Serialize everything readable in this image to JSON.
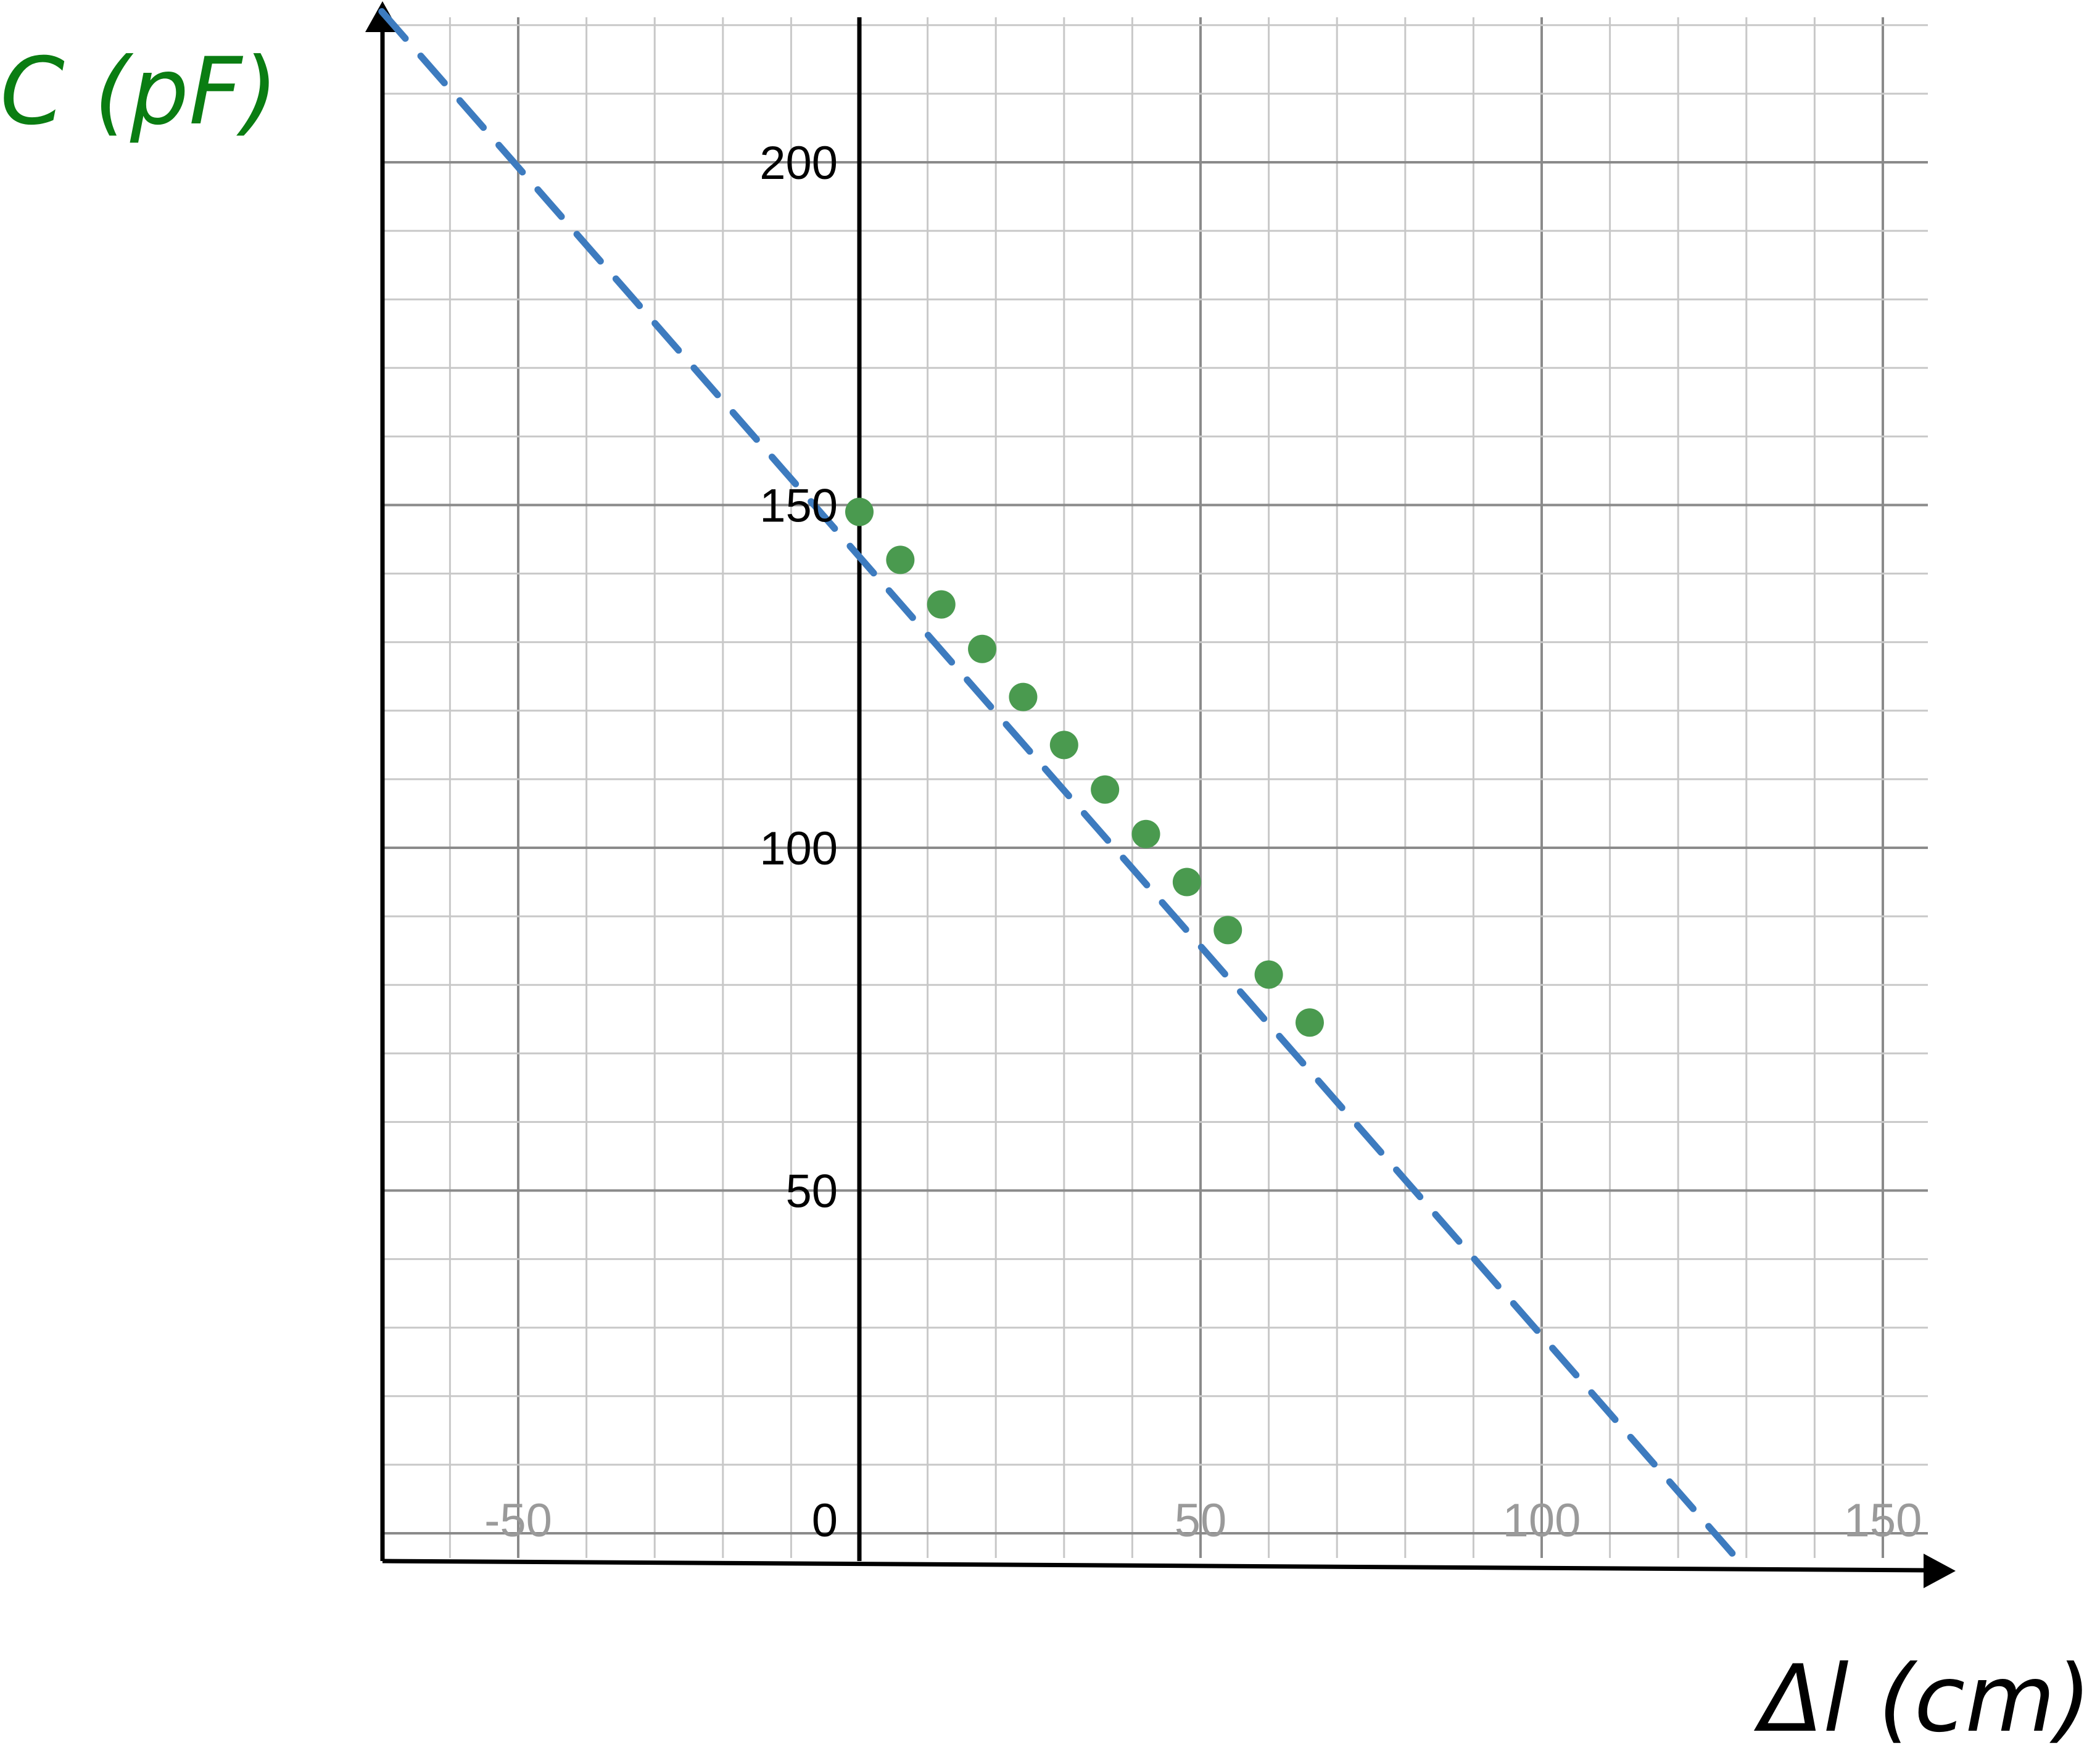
{
  "chart_data": {
    "type": "scatter",
    "xlabel": "Δl (cm)",
    "ylabel": "C (pF)",
    "xlim": [
      -70,
      157
    ],
    "ylim": [
      -4,
      228
    ],
    "x_ticks": [
      -50,
      50,
      100,
      150
    ],
    "y_ticks": [
      0,
      50,
      100,
      150,
      200
    ],
    "x_tick_labels": [
      "-50",
      "50",
      "100",
      "150"
    ],
    "y_tick_labels": [
      "0",
      "50",
      "100",
      "150",
      "200"
    ],
    "grid": true,
    "legend": "none",
    "series": [
      {
        "x": [
          0,
          6,
          12,
          18,
          24,
          30,
          36,
          42,
          48,
          54,
          60,
          66
        ],
        "y": [
          149,
          142,
          135.5,
          129,
          122,
          115,
          108.5,
          102,
          95,
          88,
          81.5,
          74.5
        ]
      }
    ],
    "fit_line": {
      "x": [
        -70,
        128
      ],
      "y": [
        222,
        -3
      ]
    },
    "colors": {
      "points": "#4a9a4f",
      "fit_line": "#3d7bbf",
      "axis_labels": "#0a7d12",
      "grid_major": "#8a8a8a",
      "grid_minor": "#c8c8c8",
      "axes": "#000000"
    }
  }
}
